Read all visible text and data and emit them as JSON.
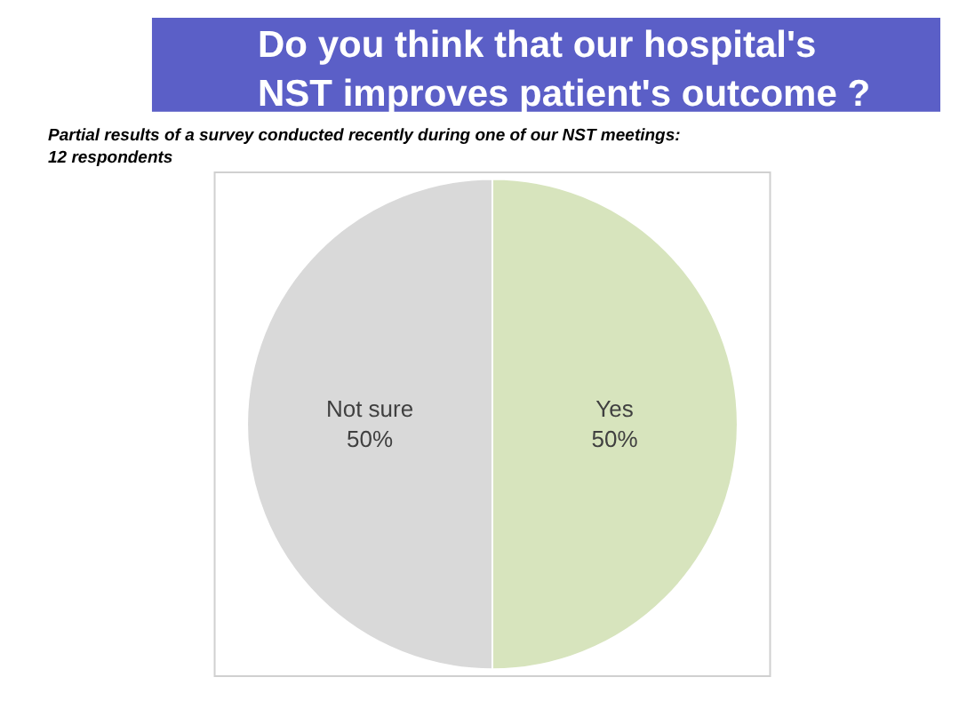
{
  "chart_data": {
    "type": "pie",
    "title": "Do you think that our hospital's\nNST improves patient's outcome ?",
    "subtitle": "Partial results of a survey conducted recently during one of our NST meetings:\n12 respondents",
    "categories": [
      "Yes",
      "Not sure"
    ],
    "values": [
      50,
      50
    ],
    "value_labels": [
      "50%",
      "50%"
    ],
    "colors": [
      "#d7e4bd",
      "#d9d9d9"
    ]
  }
}
